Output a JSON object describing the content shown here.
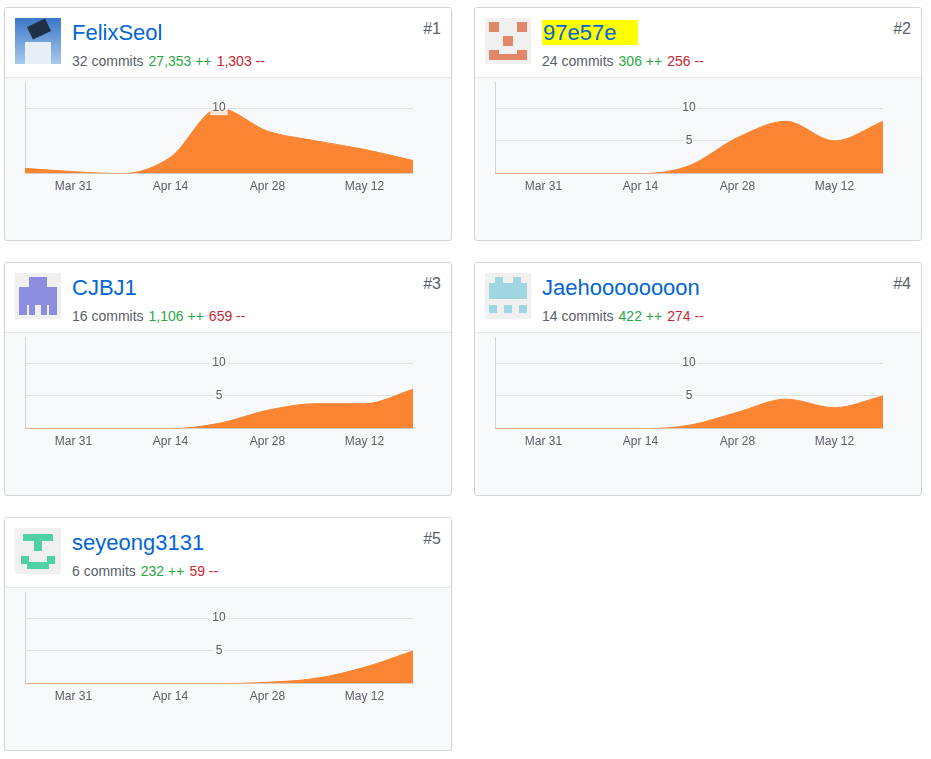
{
  "chart_data": [
    {
      "type": "line",
      "title": "FelixSeol",
      "subtitle": "32 commits",
      "annotations": [
        "27,353 ++",
        "1,303 --",
        "#1"
      ],
      "categories": [
        null,
        "Mar 31",
        null,
        "Apr 14",
        null,
        "Apr 28",
        null,
        "May 12",
        null
      ],
      "values": [
        0.8,
        0.3,
        0,
        2.5,
        10,
        6.5,
        5,
        3.7,
        2
      ],
      "color": "#fb8532",
      "ylim": [
        0,
        14
      ],
      "yticks": [
        10
      ],
      "grid": true
    },
    {
      "type": "line",
      "title": "97e57e",
      "subtitle": "24 commits",
      "annotations": [
        "306 ++",
        "256 --",
        "#2"
      ],
      "categories": [
        null,
        "Mar 31",
        null,
        "Apr 14",
        null,
        "Apr 28",
        null,
        "May 12",
        null
      ],
      "values": [
        0,
        0,
        0,
        0,
        1.2,
        5.5,
        8,
        5,
        8
      ],
      "color": "#fb8532",
      "ylim": [
        0,
        14
      ],
      "yticks": [
        5,
        10
      ],
      "grid": true
    },
    {
      "type": "line",
      "title": "CJBJ1",
      "subtitle": "16 commits",
      "annotations": [
        "1,106 ++",
        "659 --",
        "#3"
      ],
      "categories": [
        null,
        "Mar 31",
        null,
        "Apr 14",
        null,
        "Apr 28",
        null,
        "May 12",
        null
      ],
      "values": [
        0,
        0,
        0,
        0,
        0.8,
        2.8,
        3.8,
        3.8,
        6
      ],
      "color": "#fb8532",
      "ylim": [
        0,
        14
      ],
      "yticks": [
        5,
        10
      ],
      "grid": true
    },
    {
      "type": "line",
      "title": "Jaehoooooooon",
      "subtitle": "14 commits",
      "annotations": [
        "422 ++",
        "274 --",
        "#4"
      ],
      "categories": [
        null,
        "Mar 31",
        null,
        "Apr 14",
        null,
        "Apr 28",
        null,
        "May 12",
        null
      ],
      "values": [
        0,
        0,
        0,
        0,
        0.5,
        2.5,
        4.5,
        3.2,
        5
      ],
      "color": "#fb8532",
      "ylim": [
        0,
        14
      ],
      "yticks": [
        5,
        10
      ],
      "grid": true
    },
    {
      "type": "line",
      "title": "seyeong3131",
      "subtitle": "6 commits",
      "annotations": [
        "232 ++",
        "59 --",
        "#5"
      ],
      "categories": [
        null,
        "Mar 31",
        null,
        "Apr 14",
        null,
        "Apr 28",
        null,
        "May 12",
        null
      ],
      "values": [
        0,
        0,
        0,
        0,
        0,
        0.2,
        0.8,
        2.5,
        5
      ],
      "color": "#fb8532",
      "ylim": [
        0,
        14
      ],
      "yticks": [
        5,
        10
      ],
      "grid": true
    }
  ]
}
